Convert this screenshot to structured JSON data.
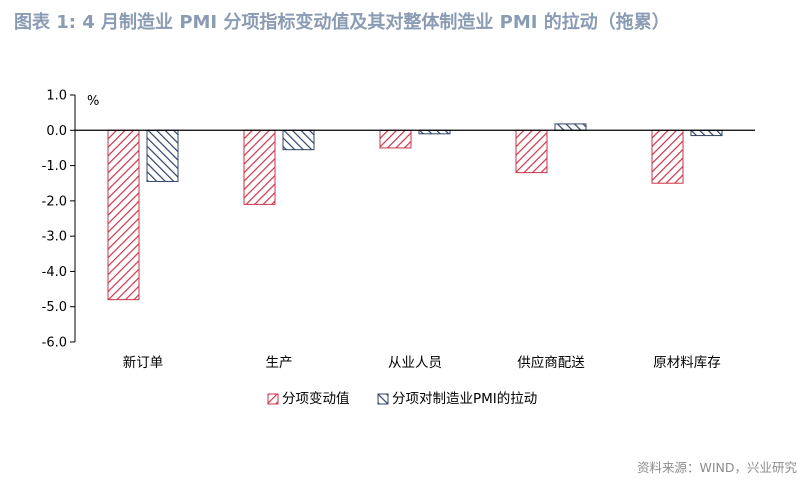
{
  "title": "图表 1:  4 月制造业 PMI 分项指标变动值及其对整体制造业 PMI 的拉动（拖累）",
  "source": "资料来源：WIND，兴业研究",
  "colors": {
    "series1": "#c9344a",
    "series2": "#2f4468",
    "axis": "#000000"
  },
  "chart_data": {
    "type": "bar",
    "categories": [
      "新订单",
      "生产",
      "从业人员",
      "供应商配送",
      "原材料库存"
    ],
    "series": [
      {
        "name": "分项变动值",
        "values": [
          -4.8,
          -2.1,
          -0.5,
          -1.2,
          -1.5
        ]
      },
      {
        "name": "分项对制造业PMI的拉动",
        "values": [
          -1.45,
          -0.55,
          -0.1,
          0.18,
          -0.15
        ]
      }
    ],
    "ylim": [
      -6.0,
      1.0
    ],
    "yticks": [
      "1.0",
      "0.0",
      "-1.0",
      "-2.0",
      "-3.0",
      "-4.0",
      "-5.0",
      "-6.0"
    ],
    "ytick_values": [
      1,
      0,
      -1,
      -2,
      -3,
      -4,
      -5,
      -6
    ],
    "unit": "%",
    "legend_position": "bottom",
    "grid": false
  }
}
